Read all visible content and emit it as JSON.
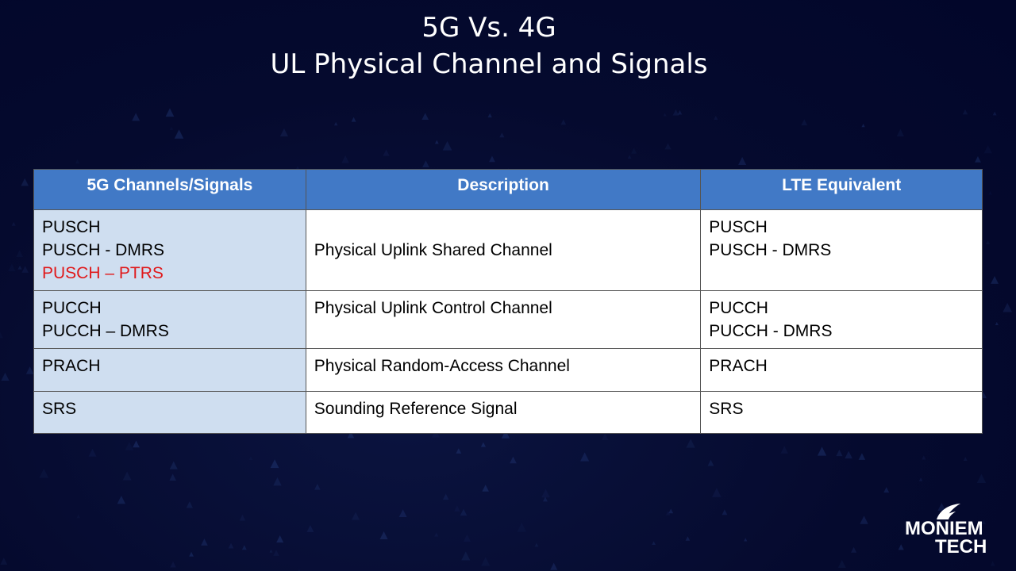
{
  "slide": {
    "title_line1": "5G Vs. 4G",
    "title_line2": "UL Physical Channel and Signals"
  },
  "table": {
    "headers": [
      "5G Channels/Signals",
      "Description",
      "LTE Equivalent"
    ],
    "rows": [
      {
        "nr": [
          "PUSCH",
          "PUSCH - DMRS",
          "PUSCH – PTRS"
        ],
        "description": "Physical Uplink Shared Channel",
        "lte": [
          "PUSCH",
          "PUSCH - DMRS"
        ]
      },
      {
        "nr": [
          "PUCCH",
          "PUCCH – DMRS"
        ],
        "description": "Physical Uplink Control Channel",
        "lte": [
          "PUCCH",
          "PUCCH - DMRS"
        ]
      },
      {
        "nr": [
          "PRACH"
        ],
        "description": "Physical Random-Access Channel",
        "lte": [
          "PRACH"
        ]
      },
      {
        "nr": [
          "SRS"
        ],
        "description": "Sounding Reference Signal",
        "lte": [
          "SRS"
        ]
      }
    ],
    "highlight_color": "#e0191b",
    "header_color": "#4179c6"
  },
  "logo": {
    "line1": "MONIEM",
    "line2": "TECH"
  }
}
